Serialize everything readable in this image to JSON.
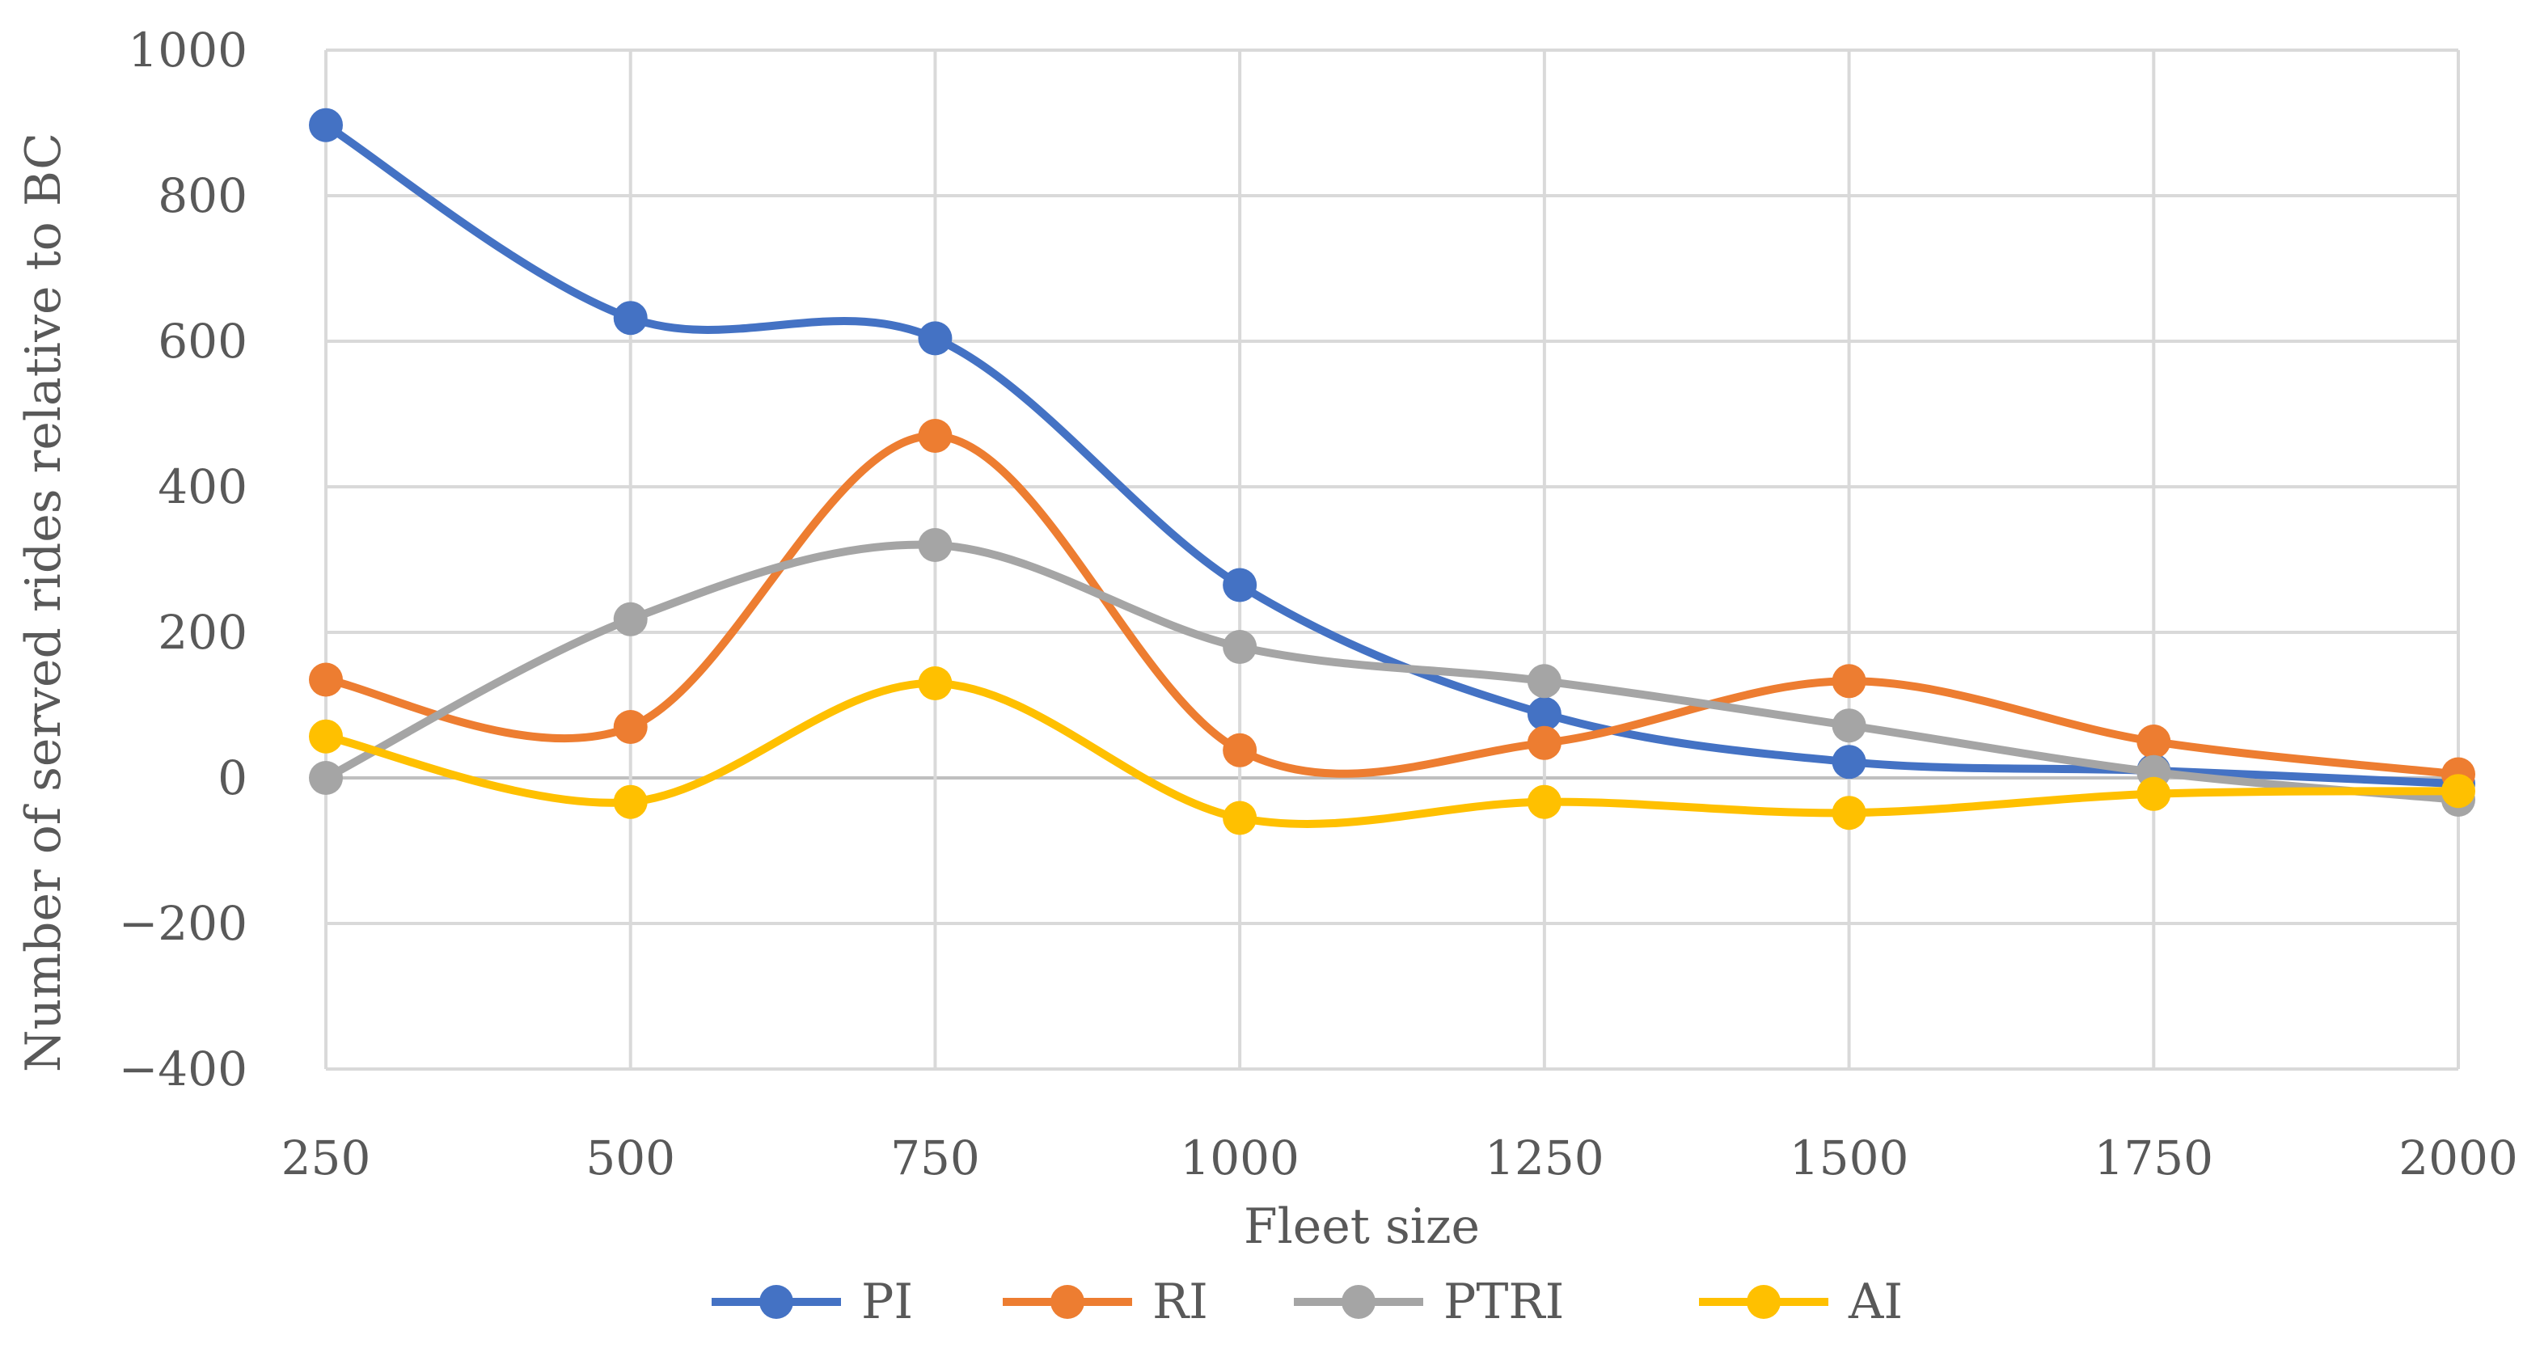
{
  "chart_data": {
    "type": "line",
    "smooth": true,
    "title": "",
    "xlabel": "Fleet size",
    "ylabel": "Number of served rides relative to BC",
    "categories": [
      "250",
      "500",
      "750",
      "1000",
      "1250",
      "1500",
      "1750",
      "2000"
    ],
    "y_ticks": [
      "1000",
      "800",
      "600",
      "400",
      "200",
      "0",
      "−200",
      "−400"
    ],
    "y_tick_values": [
      1000,
      800,
      600,
      400,
      200,
      0,
      -200,
      -400
    ],
    "ylim": [
      -400,
      1000
    ],
    "grid": true,
    "legend_position": "bottom",
    "series": [
      {
        "name": "PI",
        "color": "#4472c4",
        "values": [
          897,
          632,
          604,
          265,
          88,
          22,
          10,
          -8
        ]
      },
      {
        "name": "RI",
        "color": "#ed7d31",
        "values": [
          135,
          70,
          470,
          38,
          48,
          133,
          50,
          5
        ]
      },
      {
        "name": "PTRI",
        "color": "#a5a5a5",
        "values": [
          0,
          218,
          320,
          180,
          133,
          72,
          8,
          -30
        ]
      },
      {
        "name": "AI",
        "color": "#ffc000",
        "values": [
          57,
          -33,
          130,
          -55,
          -33,
          -48,
          -22,
          -18
        ]
      }
    ]
  }
}
